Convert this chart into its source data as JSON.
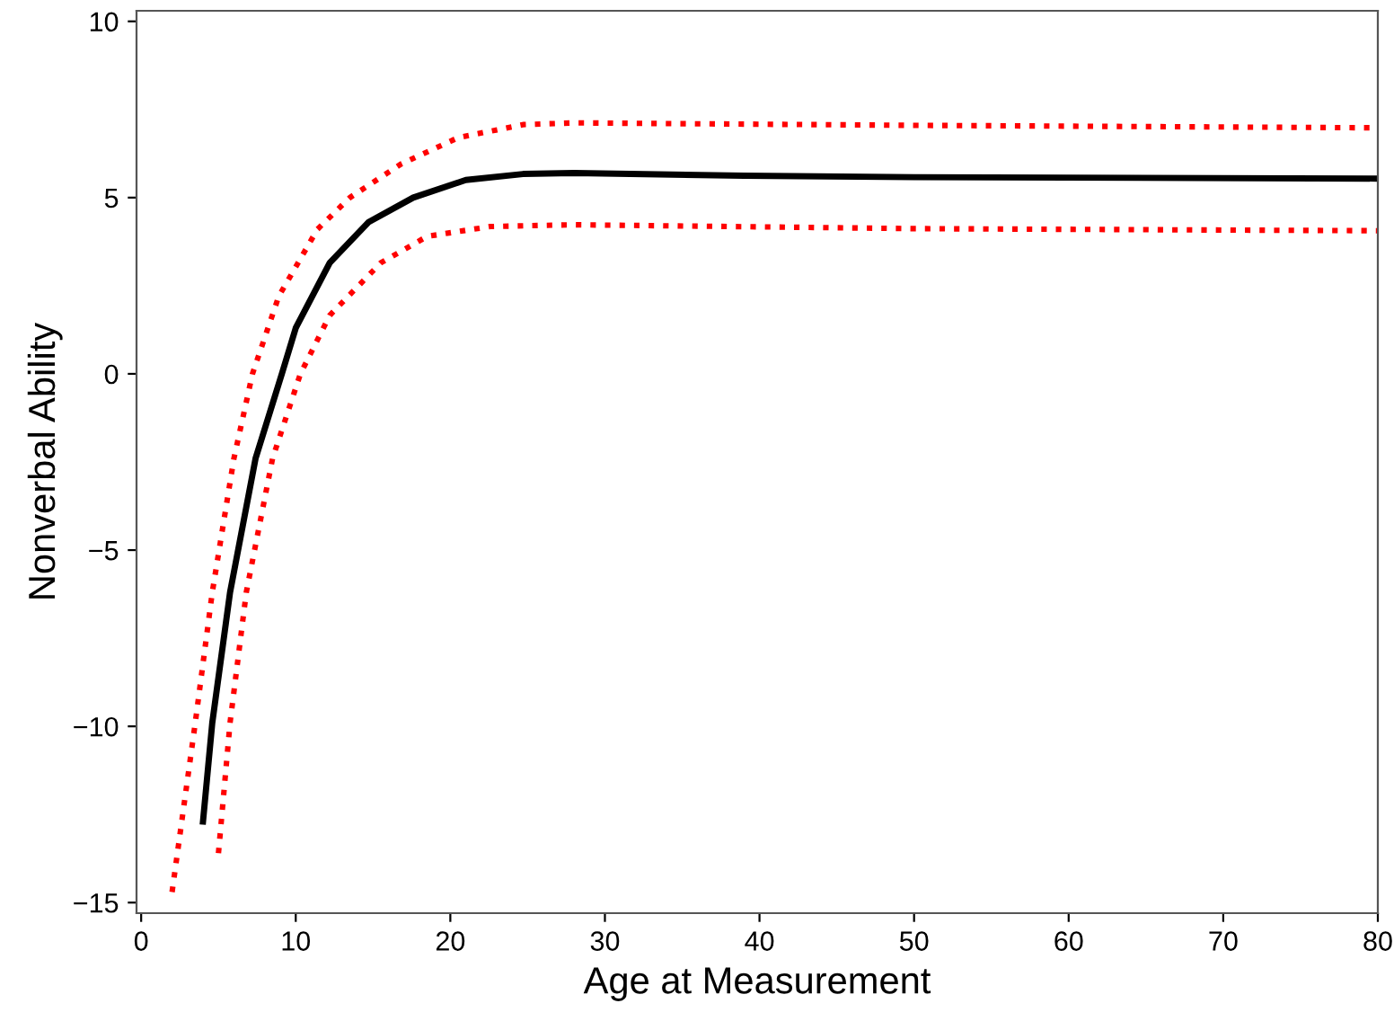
{
  "chart_data": {
    "type": "line",
    "xlabel": "Age at Measurement",
    "ylabel": "Nonverbal Ability",
    "xlim": [
      -0.3,
      80
    ],
    "ylim": [
      -15.3,
      10.3
    ],
    "xticks": [
      0,
      10,
      20,
      30,
      40,
      50,
      60,
      70,
      80
    ],
    "yticks": [
      {
        "value": -15,
        "label": "−15"
      },
      {
        "value": -10,
        "label": "−10"
      },
      {
        "value": -5,
        "label": "−5"
      },
      0,
      5,
      10
    ],
    "grid": false,
    "legend": false,
    "series": [
      {
        "color": "#000000",
        "line_style": "solid",
        "x": [
          4.0,
          4.6,
          5.75,
          7.4,
          9.1,
          10,
          12.2,
          14.7,
          17.6,
          21,
          24.7,
          28,
          39,
          50,
          80
        ],
        "values": [
          -12.7,
          -9.9,
          -6.2,
          -2.4,
          0,
          1.3,
          3.15,
          4.3,
          5.0,
          5.5,
          5.67,
          5.7,
          5.62,
          5.58,
          5.54
        ]
      },
      {
        "color": "#ff0000",
        "line_style": "dotted",
        "x": [
          2,
          3.5,
          4.6,
          6,
          7.2,
          8.9,
          11.4,
          13.5,
          16.8,
          20.5,
          24.7,
          28,
          50,
          80
        ],
        "values": [
          -14.7,
          -9.9,
          -6.2,
          -2.4,
          0,
          2.2,
          4.1,
          5.0,
          5.95,
          6.7,
          7.07,
          7.12,
          7.05,
          6.98
        ]
      },
      {
        "color": "#ff0000",
        "line_style": "dotted",
        "x": [
          5,
          5.75,
          6.8,
          8.5,
          10.3,
          12.2,
          15.5,
          18.5,
          22.6,
          28,
          50,
          80
        ],
        "values": [
          -13.6,
          -9.9,
          -6.2,
          -2.4,
          0,
          1.66,
          3.15,
          3.9,
          4.18,
          4.23,
          4.12,
          4.06
        ]
      }
    ]
  }
}
